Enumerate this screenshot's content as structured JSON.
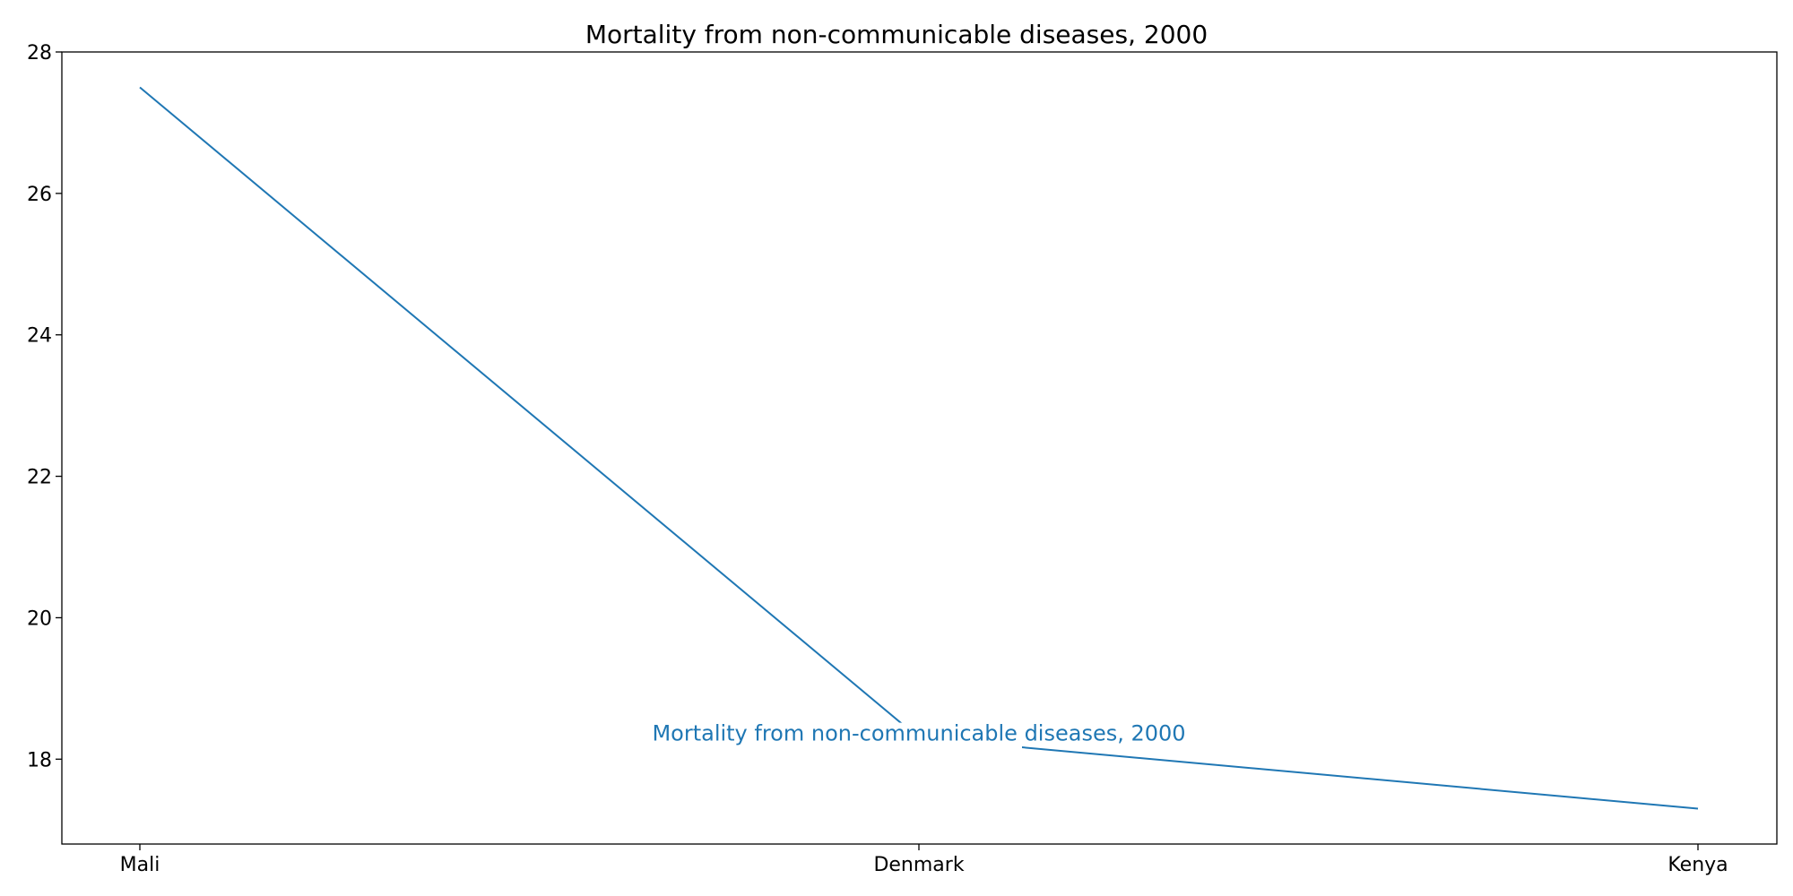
{
  "chart_data": {
    "type": "line",
    "title": "Mortality from non-communicable diseases, 2000",
    "categories": [
      "Mali",
      "Denmark",
      "Kenya"
    ],
    "series": [
      {
        "name": "Mortality from non-communicable diseases, 2000",
        "values": [
          27.5,
          18.3,
          17.3
        ],
        "color": "#1f77b4"
      }
    ],
    "xlabel": "",
    "ylabel": "",
    "ylim": [
      16.8,
      28
    ],
    "yticks": [
      18,
      20,
      22,
      24,
      26,
      28
    ],
    "grid": false,
    "legend": "none",
    "series_label_placement": "inline near Denmark"
  }
}
